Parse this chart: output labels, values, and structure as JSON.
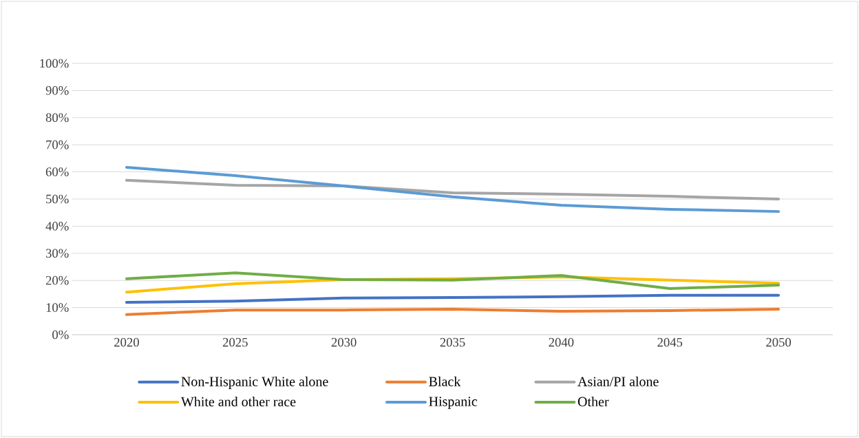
{
  "chart_data": {
    "type": "line",
    "categories": [
      "2020",
      "2025",
      "2030",
      "2035",
      "2040",
      "2045",
      "2050"
    ],
    "series": [
      {
        "name": "Non-Hispanic White alone",
        "color": "#4472c4",
        "values": [
          11.9,
          12.4,
          13.5,
          13.7,
          14.0,
          14.5,
          14.5
        ]
      },
      {
        "name": "Black",
        "color": "#ed7d31",
        "values": [
          7.4,
          9.1,
          9.1,
          9.4,
          8.6,
          8.9,
          9.4
        ]
      },
      {
        "name": "Asian/PI alone",
        "color": "#a5a5a5",
        "values": [
          56.9,
          55.1,
          54.8,
          52.3,
          51.8,
          51.0,
          50.0
        ]
      },
      {
        "name": "White and other race",
        "color": "#ffc000",
        "values": [
          15.7,
          18.8,
          20.3,
          20.6,
          21.3,
          20.1,
          19.0
        ]
      },
      {
        "name": "Hispanic",
        "color": "#5b9bd5",
        "values": [
          61.7,
          58.6,
          54.8,
          50.8,
          47.7,
          46.2,
          45.4
        ]
      },
      {
        "name": "Other",
        "color": "#70ad47",
        "values": [
          20.6,
          22.8,
          20.3,
          20.1,
          21.8,
          17.0,
          18.3
        ]
      }
    ],
    "ylim": [
      0,
      100
    ],
    "yticks": [
      {
        "value": 0,
        "label": "0%"
      },
      {
        "value": 10,
        "label": "10%"
      },
      {
        "value": 20,
        "label": "20%"
      },
      {
        "value": 30,
        "label": "30%"
      },
      {
        "value": 40,
        "label": "40%"
      },
      {
        "value": 50,
        "label": "50%"
      },
      {
        "value": 60,
        "label": "60%"
      },
      {
        "value": 70,
        "label": "70%"
      },
      {
        "value": 80,
        "label": "80%"
      },
      {
        "value": 90,
        "label": "90%"
      },
      {
        "value": 100,
        "label": "100%"
      }
    ],
    "grid": "y",
    "legend": "bottom",
    "marker": "none",
    "line_style": "solid"
  }
}
